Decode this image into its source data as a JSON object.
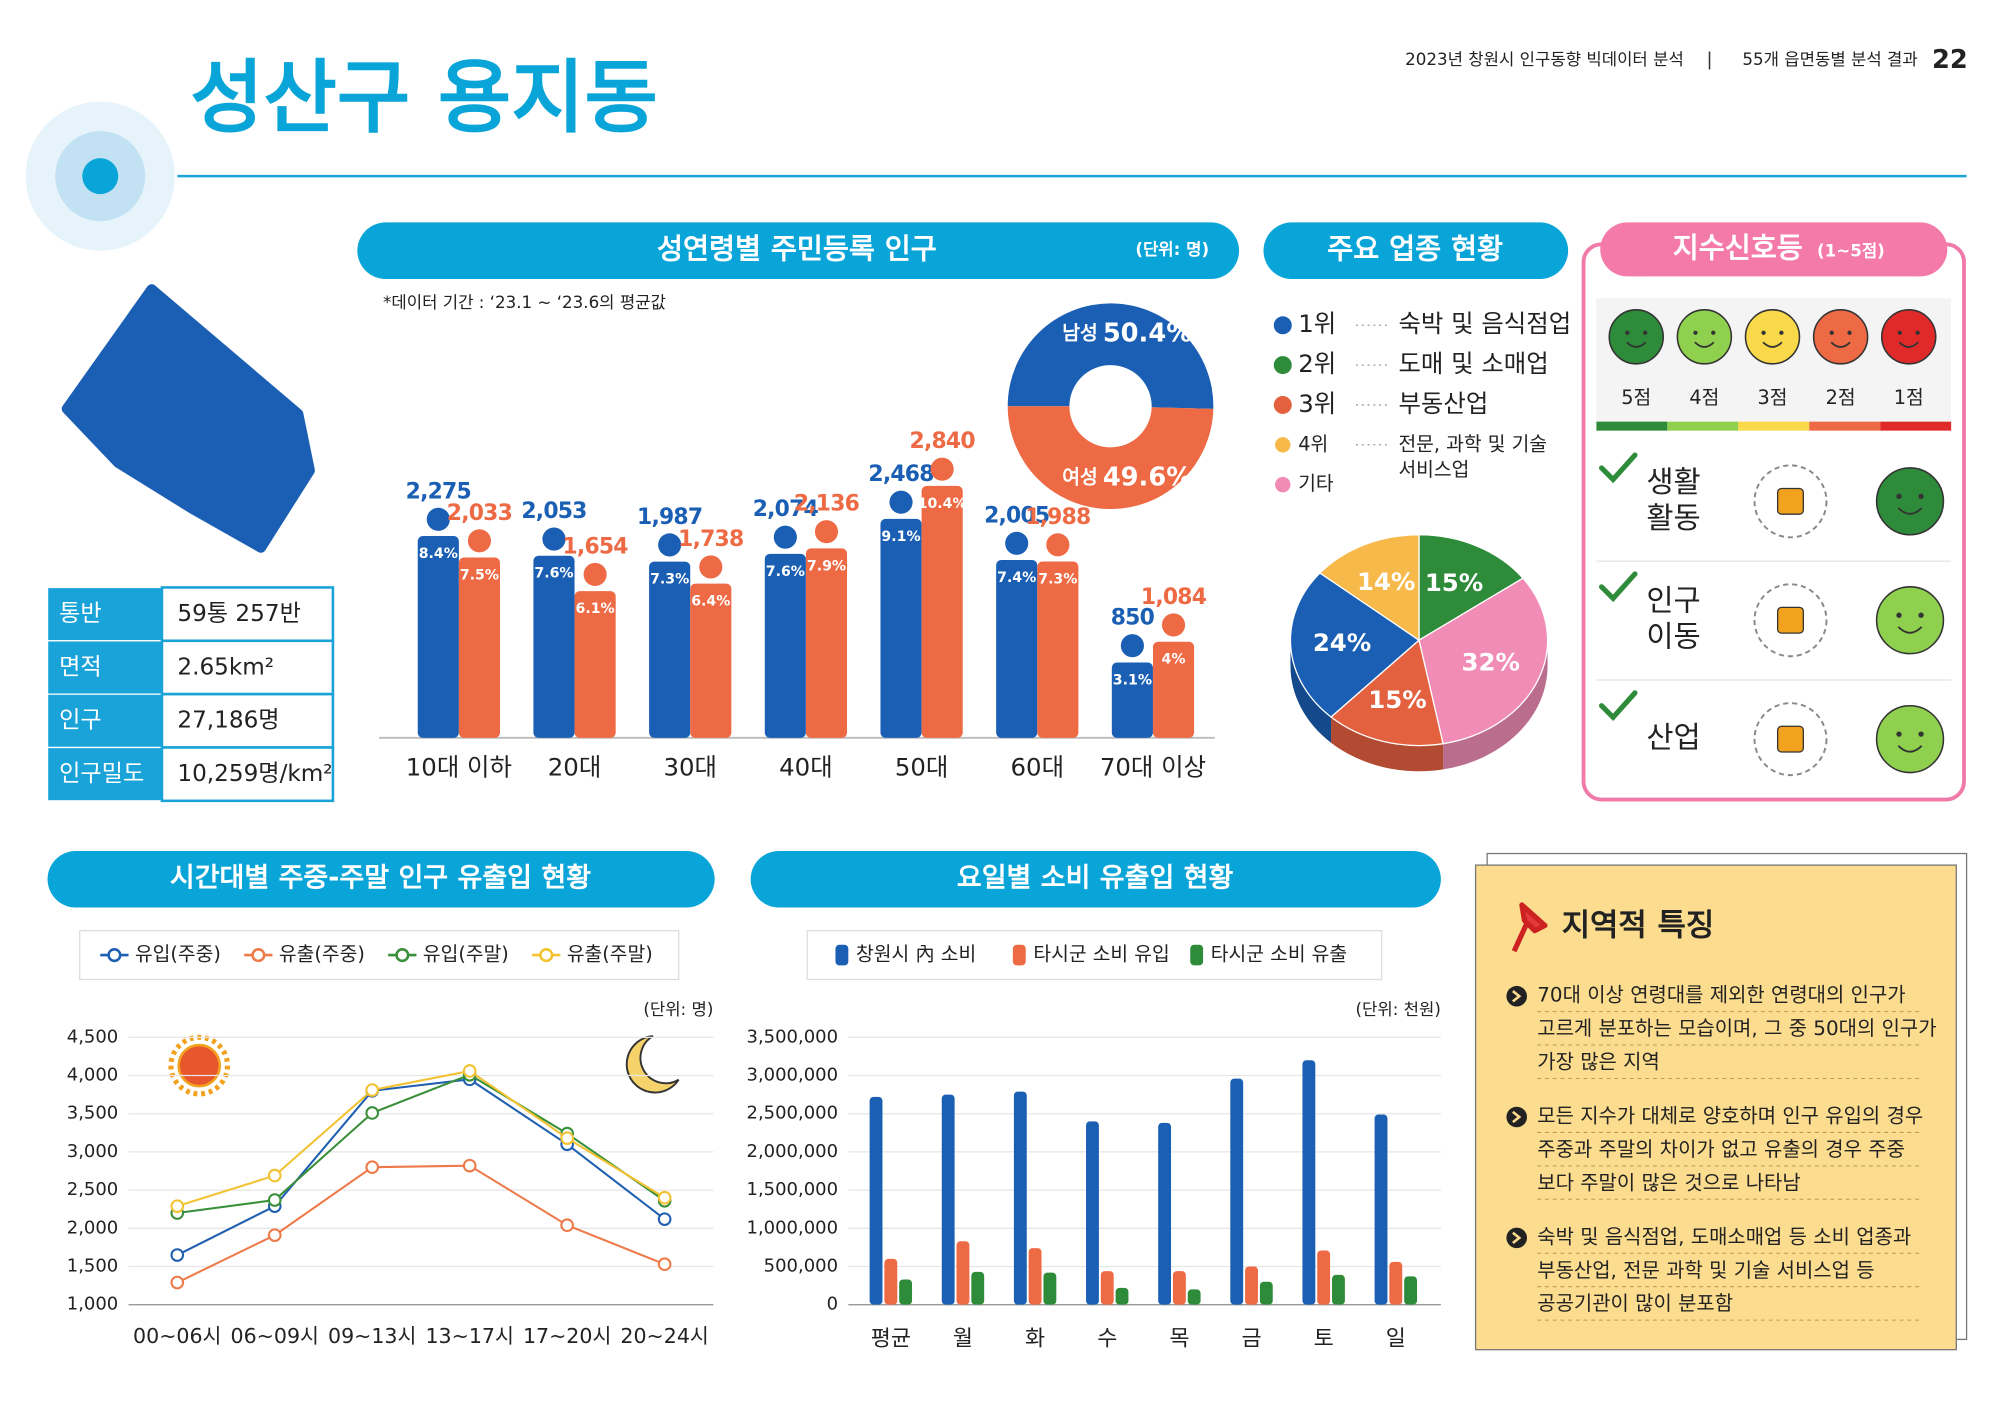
{
  "header": {
    "title": "성산구 용지동",
    "report": "2023년 창원시 인구동향 빅데이터 분석",
    "section": "55개 읍면동별 분석 결과",
    "page": "22"
  },
  "info": {
    "rows": [
      [
        "통반",
        "59통 257반"
      ],
      [
        "면적",
        "2.65km²"
      ],
      [
        "인구",
        "27,186명"
      ],
      [
        "인구밀도",
        "10,259명/km²"
      ]
    ]
  },
  "chart_data": [
    {
      "type": "bar",
      "title": "성연령별 주민등록 인구",
      "unit": "(단위: 명)",
      "note": "*데이터 기간 : ‘23.1 ~ ‘23.6의 평균값",
      "categories": [
        "10대 이하",
        "20대",
        "30대",
        "40대",
        "50대",
        "60대",
        "70대 이상"
      ],
      "series": [
        {
          "color": "#1a5fb4",
          "values": [
            2275,
            2053,
            1987,
            2074,
            2468,
            2005,
            850
          ],
          "value_labels": [
            "2,275",
            "2,053",
            "1,987",
            "2,074",
            "2,468",
            "2,005",
            "850"
          ],
          "share_labels": [
            "8.4%",
            "7.6%",
            "7.3%",
            "7.6%",
            "9.1%",
            "7.4%",
            "3.1%"
          ]
        },
        {
          "color": "#ee6a45",
          "values": [
            2033,
            1654,
            1738,
            2136,
            2840,
            1988,
            1084
          ],
          "value_labels": [
            "2,033",
            "1,654",
            "1,738",
            "2,136",
            "2,840",
            "1,988",
            "1,084"
          ],
          "share_labels": [
            "7.5%",
            "6.1%",
            "6.4%",
            "7.9%",
            "10.4%",
            "7.3%",
            "4%"
          ]
        }
      ]
    },
    {
      "type": "donut",
      "categories": [
        "남성",
        "여성"
      ],
      "values": [
        50.4,
        49.6
      ],
      "value_labels": [
        "50.4%",
        "49.6%"
      ],
      "colors": [
        "#1a5fb4",
        "#ee6a45"
      ]
    },
    {
      "type": "pie3d",
      "title": "주요 업종 현황",
      "legend": [
        {
          "rank": "1위",
          "name": [
            "숙박 및 음식점업"
          ],
          "color": "#1a5fb4"
        },
        {
          "rank": "2위",
          "name": [
            "도매 및 소매업"
          ],
          "color": "#2e8b3a"
        },
        {
          "rank": "3위",
          "name": [
            "부동산업"
          ],
          "color": "#e4613f"
        },
        {
          "rank": "4위",
          "name": [
            "전문, 과학 및 기술",
            "서비스업"
          ],
          "color": "#f6b94a"
        },
        {
          "rank": "기타",
          "color": "#f08cb5"
        }
      ],
      "values": [
        15,
        32,
        15,
        24,
        14
      ],
      "value_labels": [
        "15%",
        "32%",
        "15%",
        "24%",
        "14%"
      ],
      "colors": [
        "#2e8b3a",
        "#f08cb5",
        "#e4613f",
        "#1a5fb4",
        "#f6b94a"
      ]
    },
    {
      "type": "line",
      "title": "시간대별 주중-주말 인구 유출입 현황",
      "unit": "(단위: 명)",
      "categories": [
        "00~06시",
        "06~09시",
        "09~13시",
        "13~17시",
        "17~20시",
        "20~24시"
      ],
      "series": [
        {
          "name": "유입(주중)",
          "color": "#1f5fb0",
          "values": [
            1650,
            2290,
            3800,
            3950,
            3100,
            2120
          ]
        },
        {
          "name": "유출(주중)",
          "color": "#ee7a4a",
          "values": [
            1290,
            1910,
            2800,
            2820,
            2040,
            1530
          ]
        },
        {
          "name": "유입(주말)",
          "color": "#3a8f3a",
          "values": [
            2200,
            2370,
            3510,
            4010,
            3240,
            2360
          ]
        },
        {
          "name": "유출(주말)",
          "color": "#f2c230",
          "values": [
            2290,
            2690,
            3810,
            4060,
            3180,
            2400
          ]
        }
      ],
      "ylim": [
        1000,
        4500
      ],
      "yticks": [
        {
          "value": 1000,
          "label": "1,000"
        },
        {
          "value": 1500,
          "label": "1,500"
        },
        {
          "value": 2000,
          "label": "2,000"
        },
        {
          "value": 2500,
          "label": "2,500"
        },
        {
          "value": 3000,
          "label": "3,000"
        },
        {
          "value": 3500,
          "label": "3,500"
        },
        {
          "value": 4000,
          "label": "4,000"
        },
        {
          "value": 4500,
          "label": "4,500"
        }
      ],
      "grid": true
    },
    {
      "type": "bar",
      "title": "요일별 소비 유출입 현황",
      "unit": "(단위: 천원)",
      "categories": [
        "평균",
        "월",
        "화",
        "수",
        "목",
        "금",
        "토",
        "일"
      ],
      "series": [
        {
          "name": "창원시 內 소비",
          "color": "#1a5fb4",
          "values": [
            2720000,
            2750000,
            2790000,
            2400000,
            2380000,
            2960000,
            3200000,
            2490000
          ]
        },
        {
          "name": "타시군 소비 유입",
          "color": "#ee6a45",
          "values": [
            600000,
            830000,
            740000,
            440000,
            440000,
            500000,
            710000,
            560000
          ]
        },
        {
          "name": "타시군 소비 유출",
          "color": "#2e8b3a",
          "values": [
            330000,
            430000,
            420000,
            220000,
            200000,
            300000,
            390000,
            370000
          ]
        }
      ],
      "ylim": [
        0,
        3500000
      ],
      "yticks": [
        0,
        {
          "value": 500000,
          "label": "500,000"
        },
        {
          "value": 1000000,
          "label": "1,000,000"
        },
        {
          "value": 1500000,
          "label": "1,500,000"
        },
        {
          "value": 2000000,
          "label": "2,000,000"
        },
        {
          "value": 2500000,
          "label": "2,500,000"
        },
        {
          "value": 3000000,
          "label": "3,000,000"
        },
        {
          "value": 3500000,
          "label": "3,500,000"
        }
      ],
      "grid": true
    }
  ],
  "signals": {
    "title": "지수신호등",
    "range": "(1~5점)",
    "scale": [
      {
        "label": "5점",
        "color": "#2e8b3a"
      },
      {
        "label": "4점",
        "color": "#8fd14f"
      },
      {
        "label": "3점",
        "color": "#f9d94a"
      },
      {
        "label": "2점",
        "color": "#ee6a45"
      },
      {
        "label": "1점",
        "color": "#e02a2a"
      }
    ],
    "items": [
      {
        "name": [
          "생활",
          "활동"
        ],
        "score": 5
      },
      {
        "name": [
          "인구",
          "이동"
        ],
        "score": 4
      },
      {
        "name": [
          "산업"
        ],
        "score": 4
      }
    ]
  },
  "features": {
    "title": "지역적 특징",
    "items": [
      {
        "lines": [
          "70대 이상 연령대를 제외한 연령대의 인구가",
          "고르게 분포하는 모습이며, 그 중 50대의 인구가",
          "가장 많은 지역"
        ]
      },
      {
        "lines": [
          "모든 지수가 대체로 양호하며 인구 유입의 경우",
          "주중과 주말의 차이가 없고 유출의 경우 주중",
          "보다 주말이 많은 것으로 나타남"
        ]
      },
      {
        "lines": [
          "숙박 및 음식점업, 도매소매업 등 소비 업종과",
          "부동산업, 전문 과학 및 기술 서비스업 등",
          "공공기관이 많이 분포함"
        ]
      }
    ]
  }
}
